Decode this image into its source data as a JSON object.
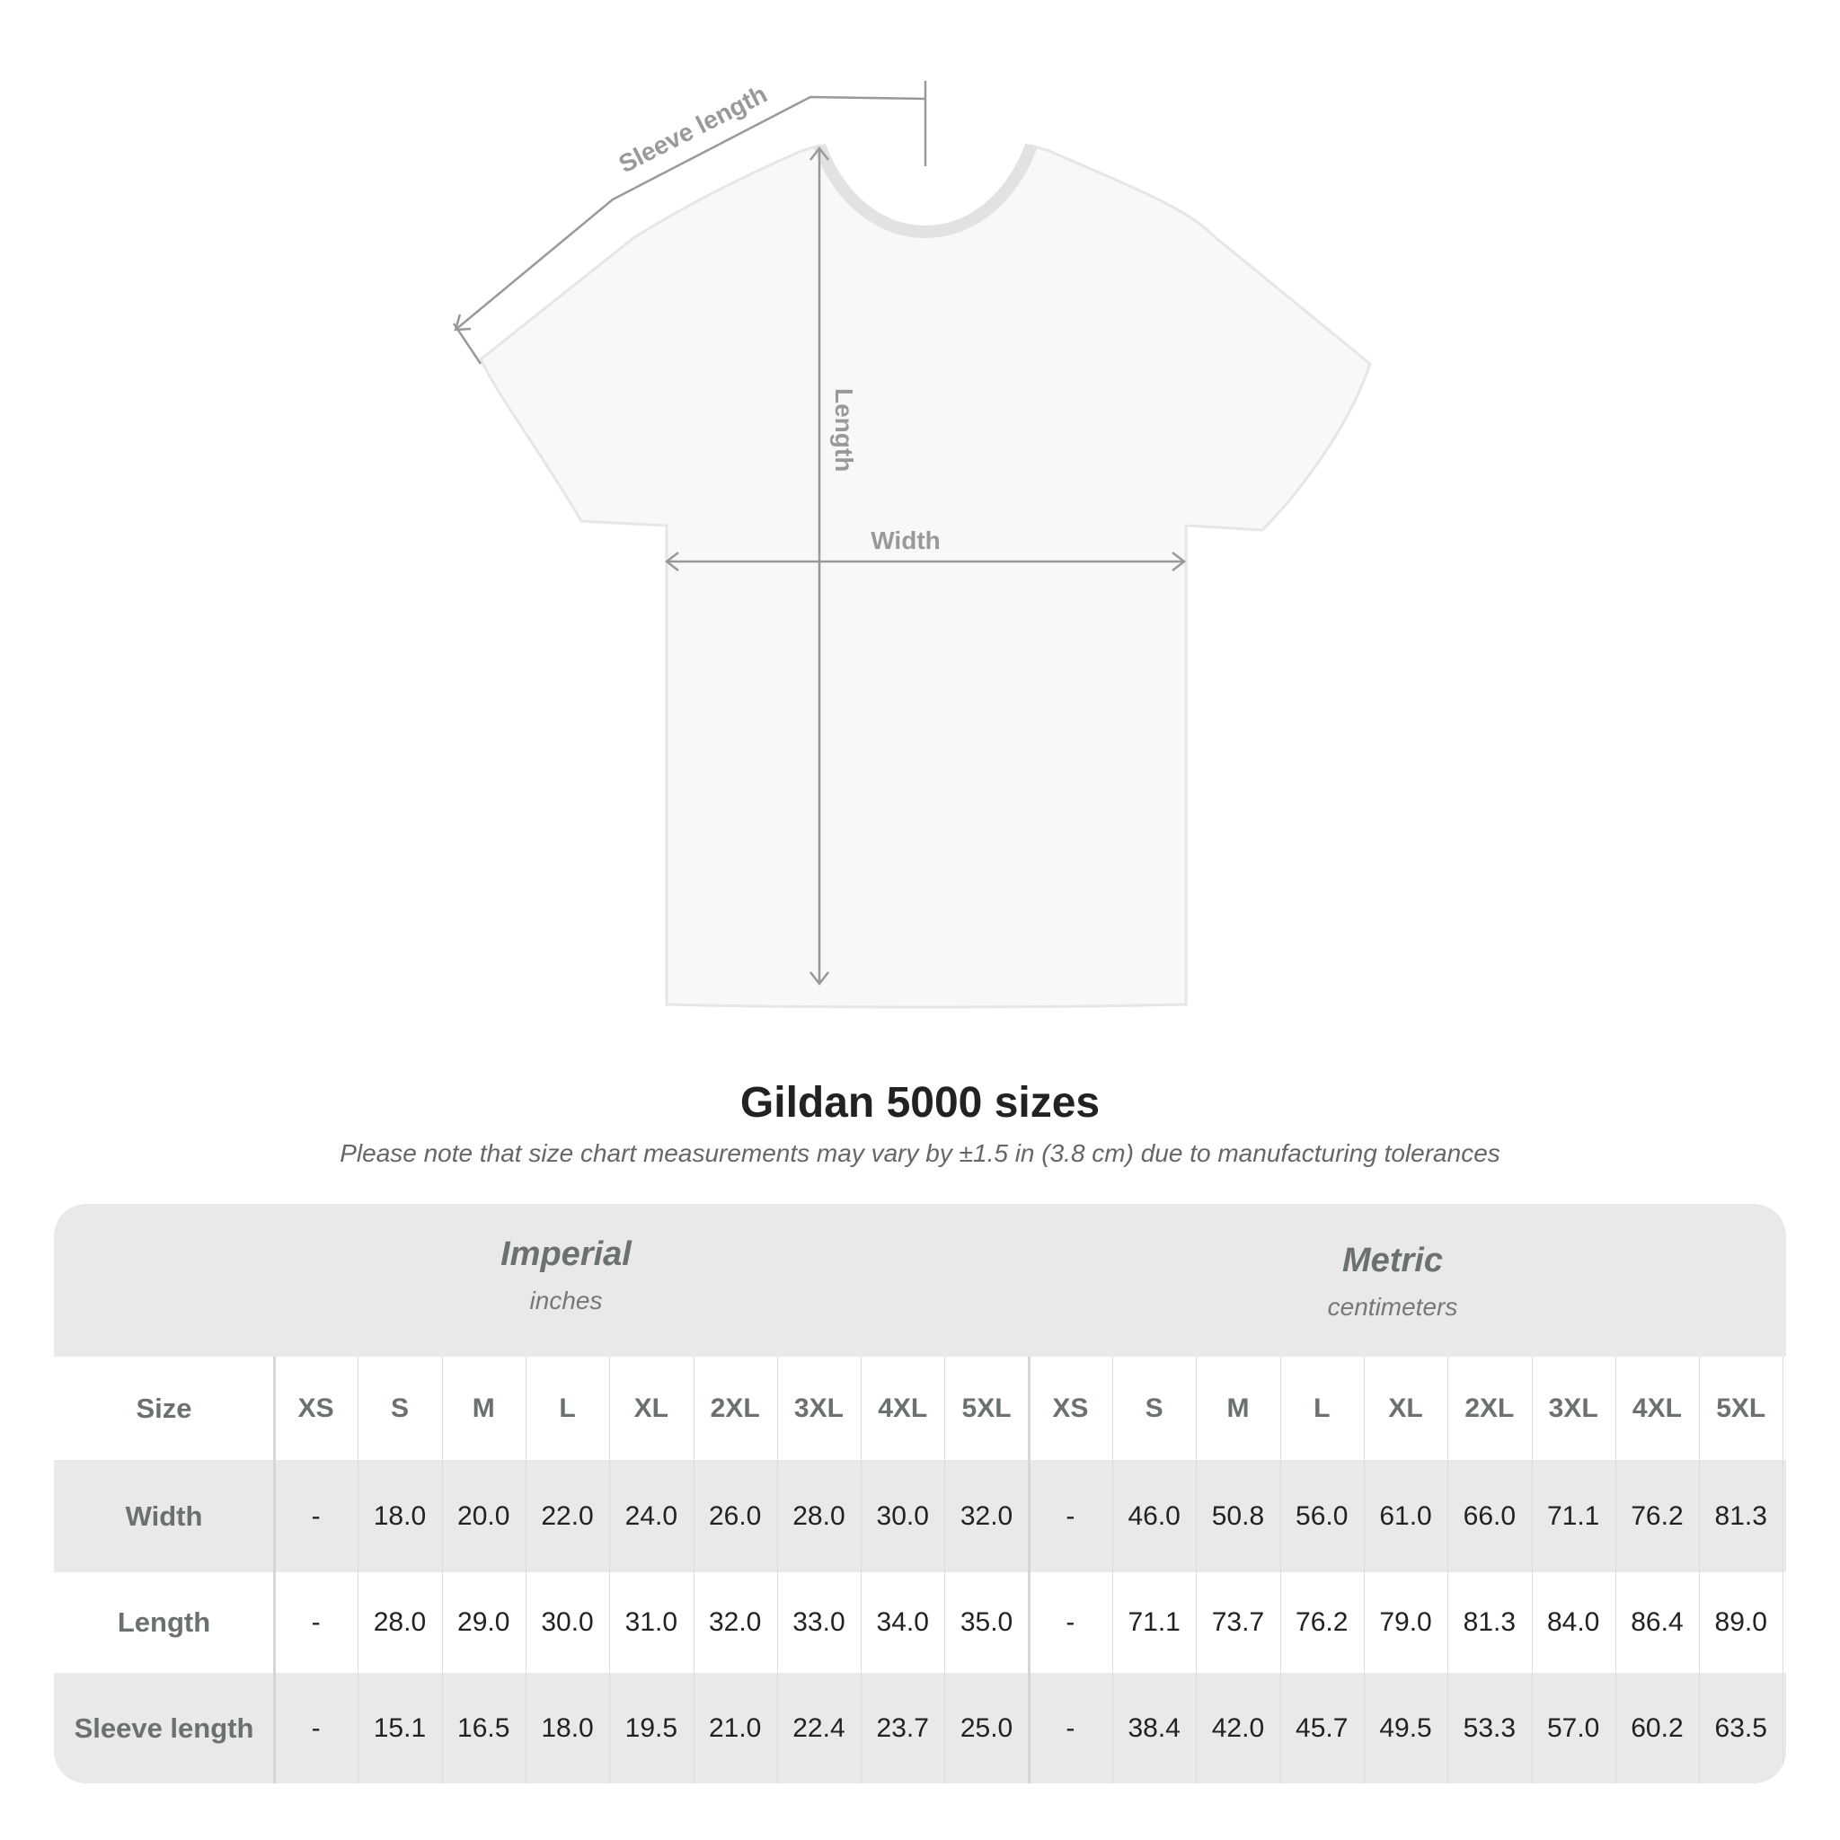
{
  "diagram": {
    "labels": {
      "sleeve": "Sleeve length",
      "length": "Length",
      "width": "Width"
    }
  },
  "title": "Gildan 5000 sizes",
  "note": "Please note that size chart measurements may vary by ±1.5 in (3.8 cm) due to manufacturing tolerances",
  "table": {
    "imperial": {
      "title": "Imperial",
      "unit": "inches"
    },
    "metric": {
      "title": "Metric",
      "unit": "centimeters"
    },
    "size_label": "Size",
    "sizes": [
      "XS",
      "S",
      "M",
      "L",
      "XL",
      "2XL",
      "3XL",
      "4XL",
      "5XL"
    ],
    "rows": [
      {
        "label": "Width",
        "imperial": [
          "-",
          "18.0",
          "20.0",
          "22.0",
          "24.0",
          "26.0",
          "28.0",
          "30.0",
          "32.0"
        ],
        "metric": [
          "-",
          "46.0",
          "50.8",
          "56.0",
          "61.0",
          "66.0",
          "71.1",
          "76.2",
          "81.3"
        ]
      },
      {
        "label": "Length",
        "imperial": [
          "-",
          "28.0",
          "29.0",
          "30.0",
          "31.0",
          "32.0",
          "33.0",
          "34.0",
          "35.0"
        ],
        "metric": [
          "-",
          "71.1",
          "73.7",
          "76.2",
          "79.0",
          "81.3",
          "84.0",
          "86.4",
          "89.0"
        ]
      },
      {
        "label": "Sleeve length",
        "imperial": [
          "-",
          "15.1",
          "16.5",
          "18.0",
          "19.5",
          "21.0",
          "22.4",
          "23.7",
          "25.0"
        ],
        "metric": [
          "-",
          "38.4",
          "42.0",
          "45.7",
          "49.5",
          "53.3",
          "57.0",
          "60.2",
          "63.5"
        ]
      }
    ]
  },
  "colors": {
    "band": "#e9e9e9",
    "header_text": "#6b7070",
    "lines": "#999999"
  }
}
